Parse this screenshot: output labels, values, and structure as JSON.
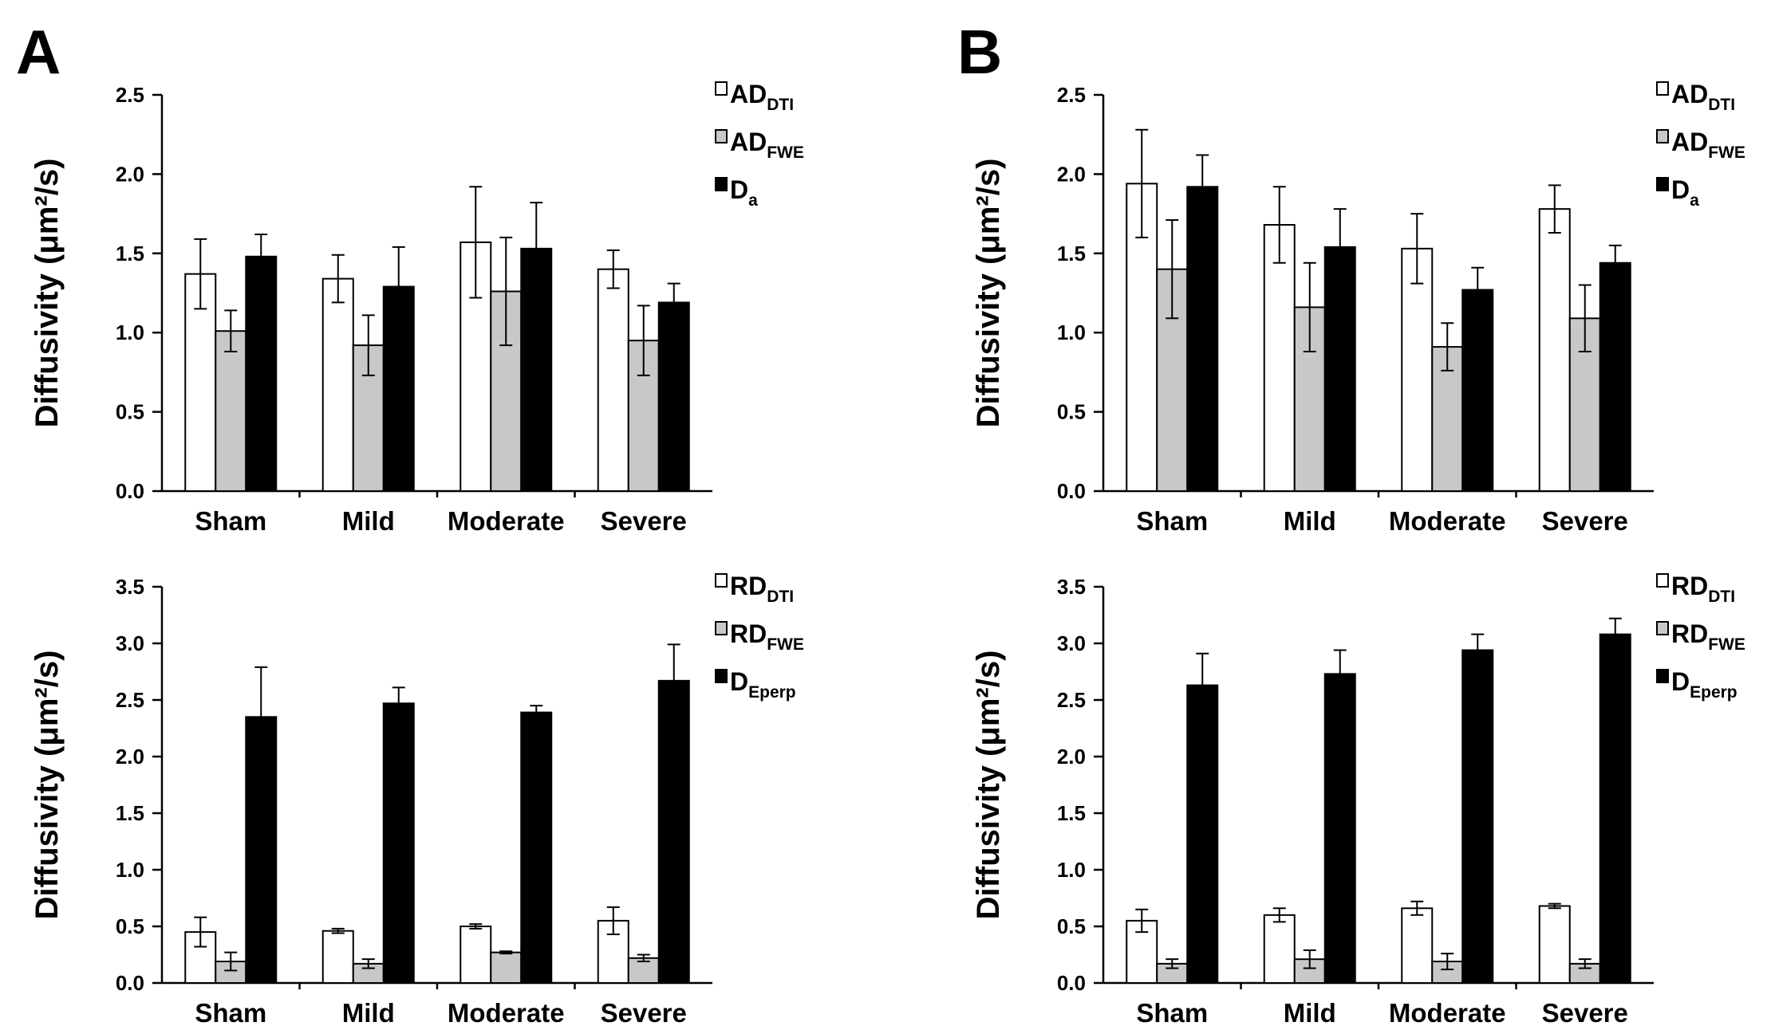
{
  "figure": {
    "panel_letters": [
      "A",
      "B"
    ]
  },
  "chart_data": [
    {
      "panel": "A",
      "position": "top",
      "type": "bar",
      "ylabel": "Diffusivity (μm²/s)",
      "ylim": [
        0,
        2.5
      ],
      "yticks": [
        "0.0",
        "0.5",
        "1.0",
        "1.5",
        "2.0",
        "2.5"
      ],
      "categories": [
        "Sham",
        "Mild",
        "Moderate",
        "Severe"
      ],
      "legend_position": "top-right",
      "series": [
        {
          "name": "AD",
          "sub": "DTI",
          "color": "#ffffff",
          "values": [
            1.37,
            1.34,
            1.57,
            1.4
          ],
          "errors": [
            0.22,
            0.15,
            0.35,
            0.12
          ]
        },
        {
          "name": "AD",
          "sub": "FWE",
          "color": "#c8c8c8",
          "values": [
            1.01,
            0.92,
            1.26,
            0.95
          ],
          "errors": [
            0.13,
            0.19,
            0.34,
            0.22
          ]
        },
        {
          "name": "D",
          "sub": "a",
          "color": "#000000",
          "values": [
            1.48,
            1.29,
            1.53,
            1.19
          ],
          "errors": [
            0.14,
            0.25,
            0.29,
            0.12
          ]
        }
      ]
    },
    {
      "panel": "A",
      "position": "bottom",
      "type": "bar",
      "ylabel": "Diffusivity (μm²/s)",
      "ylim": [
        0,
        3.5
      ],
      "yticks": [
        "0.0",
        "0.5",
        "1.0",
        "1.5",
        "2.0",
        "2.5",
        "3.0",
        "3.5"
      ],
      "categories": [
        "Sham",
        "Mild",
        "Moderate",
        "Severe"
      ],
      "legend_position": "top-right",
      "series": [
        {
          "name": "RD",
          "sub": "DTI",
          "color": "#ffffff",
          "values": [
            0.45,
            0.46,
            0.5,
            0.55
          ],
          "errors": [
            0.13,
            0.02,
            0.02,
            0.12
          ]
        },
        {
          "name": "RD",
          "sub": "FWE",
          "color": "#c8c8c8",
          "values": [
            0.19,
            0.17,
            0.27,
            0.22
          ],
          "errors": [
            0.08,
            0.04,
            0.01,
            0.03
          ]
        },
        {
          "name": "D",
          "sub": "Eperp",
          "color": "#000000",
          "values": [
            2.35,
            2.47,
            2.39,
            2.67
          ],
          "errors": [
            0.44,
            0.14,
            0.06,
            0.32
          ]
        }
      ]
    },
    {
      "panel": "B",
      "position": "top",
      "type": "bar",
      "ylabel": "Diffusivity (μm²/s)",
      "ylim": [
        0,
        2.5
      ],
      "yticks": [
        "0.0",
        "0.5",
        "1.0",
        "1.5",
        "2.0",
        "2.5"
      ],
      "categories": [
        "Sham",
        "Mild",
        "Moderate",
        "Severe"
      ],
      "legend_position": "top-right",
      "series": [
        {
          "name": "AD",
          "sub": "DTI",
          "color": "#ffffff",
          "values": [
            1.94,
            1.68,
            1.53,
            1.78
          ],
          "errors": [
            0.34,
            0.24,
            0.22,
            0.15
          ]
        },
        {
          "name": "AD",
          "sub": "FWE",
          "color": "#c8c8c8",
          "values": [
            1.4,
            1.16,
            0.91,
            1.09
          ],
          "errors": [
            0.31,
            0.28,
            0.15,
            0.21
          ]
        },
        {
          "name": "D",
          "sub": "a",
          "color": "#000000",
          "values": [
            1.92,
            1.54,
            1.27,
            1.44
          ],
          "errors": [
            0.2,
            0.24,
            0.14,
            0.11
          ]
        }
      ]
    },
    {
      "panel": "B",
      "position": "bottom",
      "type": "bar",
      "ylabel": "Diffusivity (μm²/s)",
      "ylim": [
        0,
        3.5
      ],
      "yticks": [
        "0.0",
        "0.5",
        "1.0",
        "1.5",
        "2.0",
        "2.5",
        "3.0",
        "3.5"
      ],
      "categories": [
        "Sham",
        "Mild",
        "Moderate",
        "Severe"
      ],
      "legend_position": "top-right",
      "series": [
        {
          "name": "RD",
          "sub": "DTI",
          "color": "#ffffff",
          "values": [
            0.55,
            0.6,
            0.66,
            0.68
          ],
          "errors": [
            0.1,
            0.06,
            0.06,
            0.02
          ]
        },
        {
          "name": "RD",
          "sub": "FWE",
          "color": "#c8c8c8",
          "values": [
            0.17,
            0.21,
            0.19,
            0.17
          ],
          "errors": [
            0.04,
            0.08,
            0.07,
            0.04
          ]
        },
        {
          "name": "D",
          "sub": "Eperp",
          "color": "#000000",
          "values": [
            2.63,
            2.73,
            2.94,
            3.08
          ],
          "errors": [
            0.28,
            0.21,
            0.14,
            0.14
          ]
        }
      ]
    }
  ]
}
